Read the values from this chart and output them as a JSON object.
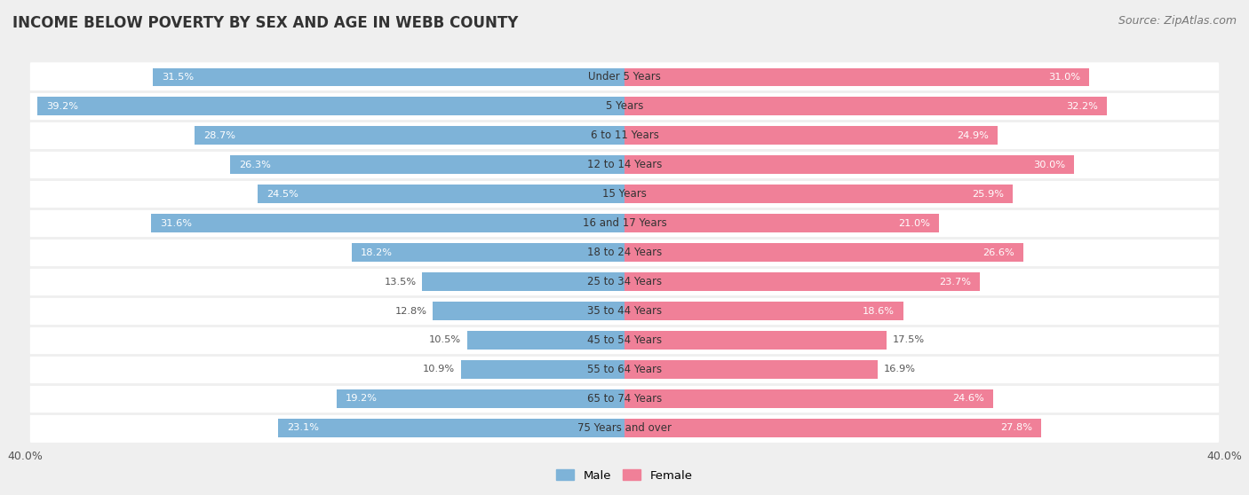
{
  "title": "INCOME BELOW POVERTY BY SEX AND AGE IN WEBB COUNTY",
  "source": "Source: ZipAtlas.com",
  "categories": [
    "Under 5 Years",
    "5 Years",
    "6 to 11 Years",
    "12 to 14 Years",
    "15 Years",
    "16 and 17 Years",
    "18 to 24 Years",
    "25 to 34 Years",
    "35 to 44 Years",
    "45 to 54 Years",
    "55 to 64 Years",
    "65 to 74 Years",
    "75 Years and over"
  ],
  "male": [
    31.5,
    39.2,
    28.7,
    26.3,
    24.5,
    31.6,
    18.2,
    13.5,
    12.8,
    10.5,
    10.9,
    19.2,
    23.1
  ],
  "female": [
    31.0,
    32.2,
    24.9,
    30.0,
    25.9,
    21.0,
    26.6,
    23.7,
    18.6,
    17.5,
    16.9,
    24.6,
    27.8
  ],
  "male_color": "#7eb3d8",
  "female_color": "#f08098",
  "axis_limit": 40.0,
  "background_color": "#efefef",
  "bar_background": "#ffffff",
  "title_fontsize": 12,
  "source_fontsize": 9,
  "legend_labels": [
    "Male",
    "Female"
  ],
  "male_label_threshold": 15,
  "female_label_threshold": 18
}
